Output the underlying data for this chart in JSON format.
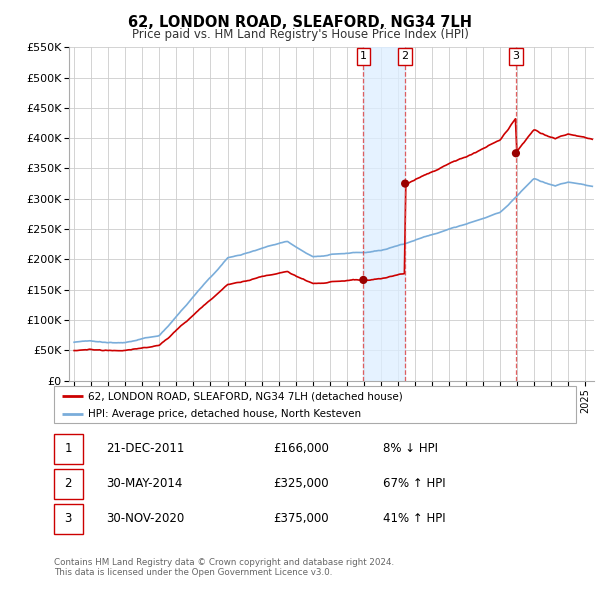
{
  "title": "62, LONDON ROAD, SLEAFORD, NG34 7LH",
  "subtitle": "Price paid vs. HM Land Registry's House Price Index (HPI)",
  "ylim": [
    0,
    550000
  ],
  "yticks": [
    0,
    50000,
    100000,
    150000,
    200000,
    250000,
    300000,
    350000,
    400000,
    450000,
    500000,
    550000
  ],
  "ytick_labels": [
    "£0",
    "£50K",
    "£100K",
    "£150K",
    "£200K",
    "£250K",
    "£300K",
    "£350K",
    "£400K",
    "£450K",
    "£500K",
    "£550K"
  ],
  "xlim_start": 1994.7,
  "xlim_end": 2025.5,
  "xticks": [
    1995,
    1996,
    1997,
    1998,
    1999,
    2000,
    2001,
    2002,
    2003,
    2004,
    2005,
    2006,
    2007,
    2008,
    2009,
    2010,
    2011,
    2012,
    2013,
    2014,
    2015,
    2016,
    2017,
    2018,
    2019,
    2020,
    2021,
    2022,
    2023,
    2024,
    2025
  ],
  "sale_color": "#cc0000",
  "hpi_color": "#7aadda",
  "sale_linewidth": 1.2,
  "hpi_linewidth": 1.2,
  "sale_dot_color": "#990000",
  "vline_color": "#dd4444",
  "shade_color": "#ddeeff",
  "transactions": [
    {
      "date": 2011.97,
      "price": 166000,
      "label": "1"
    },
    {
      "date": 2014.42,
      "price": 325000,
      "label": "2"
    },
    {
      "date": 2020.92,
      "price": 375000,
      "label": "3"
    }
  ],
  "legend_sale_label": "62, LONDON ROAD, SLEAFORD, NG34 7LH (detached house)",
  "legend_hpi_label": "HPI: Average price, detached house, North Kesteven",
  "table_rows": [
    {
      "num": "1",
      "date": "21-DEC-2011",
      "price": "£166,000",
      "change": "8% ↓ HPI"
    },
    {
      "num": "2",
      "date": "30-MAY-2014",
      "price": "£325,000",
      "change": "67% ↑ HPI"
    },
    {
      "num": "3",
      "date": "30-NOV-2020",
      "price": "£375,000",
      "change": "41% ↑ HPI"
    }
  ],
  "footer": "Contains HM Land Registry data © Crown copyright and database right 2024.\nThis data is licensed under the Open Government Licence v3.0.",
  "background_color": "#ffffff",
  "grid_color": "#cccccc"
}
